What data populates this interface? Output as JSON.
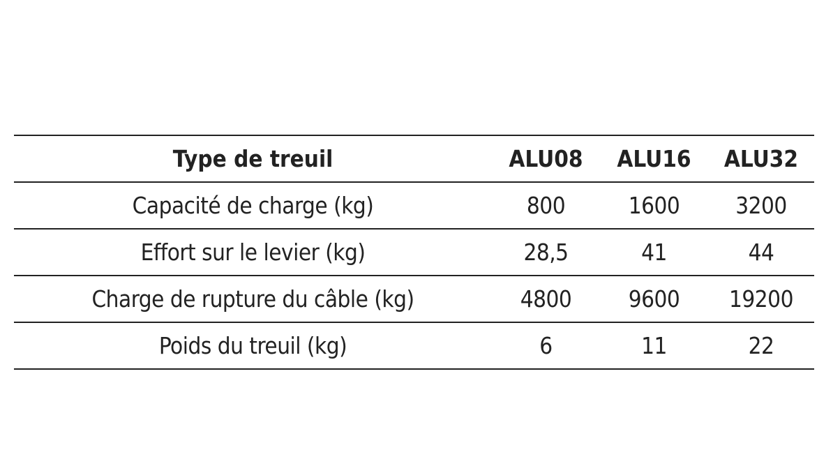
{
  "table": {
    "headers": [
      "Type de treuil",
      "ALU08",
      "ALU16",
      "ALU32"
    ],
    "rows": [
      [
        "Capacité de charge (kg)",
        "800",
        "1600",
        "3200"
      ],
      [
        "Effort sur le levier (kg)",
        "28,5",
        "41",
        "44"
      ],
      [
        "Charge de rupture du câble (kg)",
        "4800",
        "9600",
        "19200"
      ],
      [
        "Poids du treuil (kg)",
        "6",
        "11",
        "22"
      ]
    ]
  }
}
